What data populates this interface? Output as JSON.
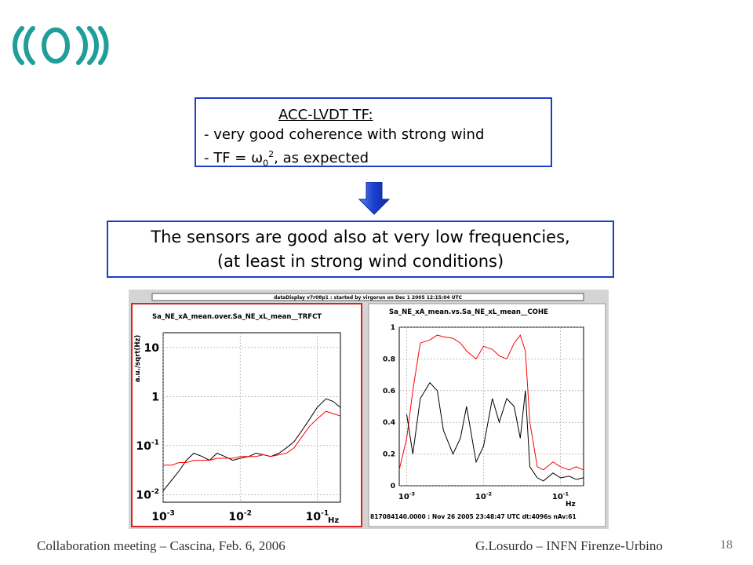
{
  "box1": {
    "heading": "ACC-LVDT TF:",
    "line1": "-  very good coherence with strong wind",
    "line2_prefix": "-  TF = ",
    "line2_symbol": "ω",
    "line2_sub": "0",
    "line2_sup": "2",
    "line2_suffix": ", as expected"
  },
  "box2": {
    "line1": "The sensors are good also at very low frequencies,",
    "line2": "(at least in strong wind conditions)"
  },
  "header_bar": "dataDisplay v7r08p1 : started by virgorun on Dec  1 2005 12:15:04 UTC",
  "footer": {
    "left": "Collaboration meeting – Cascina, Feb. 6, 2006",
    "right": "G.Losurdo – INFN Firenze-Urbino",
    "page": "18"
  },
  "colors": {
    "box_border": "#1c3fc8",
    "arrow": "#1a3fcf",
    "logo": "#1f9e9a",
    "series_red": "#ff0000",
    "series_black": "#000000"
  },
  "chart_data": [
    {
      "type": "line",
      "title": "Sa_NE_xA_mean.over.Sa_NE_xL_mean__TRFCT",
      "ylabel": "a.u./sqrt(Hz)",
      "xlabel": "Hz",
      "xscale": "log",
      "yscale": "log",
      "xlim": [
        0.001,
        0.2
      ],
      "ylim": [
        0.007,
        20
      ],
      "xticks": [
        {
          "v": 0.001,
          "label": "10-3"
        },
        {
          "v": 0.01,
          "label": "10-2"
        },
        {
          "v": 0.1,
          "label": "10-1"
        }
      ],
      "yticks": [
        {
          "v": 10,
          "label": "10"
        },
        {
          "v": 1,
          "label": "1"
        },
        {
          "v": 0.1,
          "label": "10-1"
        },
        {
          "v": 0.01,
          "label": "10-2"
        }
      ],
      "grid": true,
      "series": [
        {
          "color": "black",
          "x": [
            0.001,
            0.0013,
            0.0016,
            0.002,
            0.0025,
            0.0032,
            0.004,
            0.005,
            0.0063,
            0.008,
            0.01,
            0.013,
            0.016,
            0.02,
            0.025,
            0.032,
            0.04,
            0.05,
            0.063,
            0.08,
            0.1,
            0.13,
            0.16,
            0.2
          ],
          "y": [
            0.012,
            0.02,
            0.03,
            0.05,
            0.07,
            0.06,
            0.05,
            0.07,
            0.06,
            0.05,
            0.055,
            0.06,
            0.07,
            0.065,
            0.06,
            0.07,
            0.09,
            0.12,
            0.2,
            0.35,
            0.6,
            0.9,
            0.8,
            0.6
          ]
        },
        {
          "color": "red",
          "x": [
            0.001,
            0.0013,
            0.0016,
            0.002,
            0.0025,
            0.0032,
            0.004,
            0.005,
            0.0063,
            0.008,
            0.01,
            0.013,
            0.016,
            0.02,
            0.025,
            0.032,
            0.04,
            0.05,
            0.063,
            0.08,
            0.1,
            0.13,
            0.16,
            0.2
          ],
          "y": [
            0.04,
            0.04,
            0.045,
            0.045,
            0.05,
            0.05,
            0.05,
            0.055,
            0.055,
            0.055,
            0.06,
            0.06,
            0.06,
            0.065,
            0.06,
            0.065,
            0.07,
            0.09,
            0.15,
            0.25,
            0.35,
            0.5,
            0.45,
            0.4
          ]
        }
      ]
    },
    {
      "type": "line",
      "title": "Sa_NE_xA_mean.vs.Sa_NE_xL_mean__COHE",
      "xlabel": "Hz",
      "xscale": "log",
      "xlim": [
        0.0008,
        0.2
      ],
      "ylim": [
        0,
        1
      ],
      "xticks": [
        {
          "v": 0.001,
          "label": "10-3"
        },
        {
          "v": 0.01,
          "label": "10-2"
        },
        {
          "v": 0.1,
          "label": "10-1"
        }
      ],
      "yticks": [
        {
          "v": 0,
          "label": "0"
        },
        {
          "v": 0.2,
          "label": "0.2"
        },
        {
          "v": 0.4,
          "label": "0.4"
        },
        {
          "v": 0.6,
          "label": "0.6"
        },
        {
          "v": 0.8,
          "label": "0.8"
        },
        {
          "v": 1,
          "label": "1"
        }
      ],
      "grid": true,
      "footer_text": "817084140.0000 : Nov 26 2005 23:48:47 UTC dt:4096s nAv:61",
      "series": [
        {
          "color": "red",
          "x": [
            0.0008,
            0.001,
            0.0012,
            0.0015,
            0.002,
            0.0025,
            0.003,
            0.004,
            0.005,
            0.006,
            0.008,
            0.01,
            0.013,
            0.016,
            0.02,
            0.025,
            0.03,
            0.035,
            0.04,
            0.05,
            0.06,
            0.08,
            0.1,
            0.13,
            0.16,
            0.2
          ],
          "y": [
            0.1,
            0.3,
            0.6,
            0.9,
            0.92,
            0.95,
            0.94,
            0.93,
            0.9,
            0.85,
            0.8,
            0.88,
            0.86,
            0.82,
            0.8,
            0.9,
            0.95,
            0.85,
            0.4,
            0.12,
            0.1,
            0.15,
            0.12,
            0.1,
            0.12,
            0.1
          ]
        },
        {
          "color": "black",
          "x": [
            0.001,
            0.0012,
            0.0015,
            0.002,
            0.0025,
            0.003,
            0.004,
            0.005,
            0.006,
            0.008,
            0.01,
            0.013,
            0.016,
            0.02,
            0.025,
            0.03,
            0.035,
            0.04,
            0.05,
            0.06,
            0.08,
            0.1,
            0.13,
            0.16,
            0.2
          ],
          "y": [
            0.45,
            0.2,
            0.55,
            0.65,
            0.6,
            0.35,
            0.2,
            0.3,
            0.5,
            0.15,
            0.25,
            0.55,
            0.4,
            0.55,
            0.5,
            0.3,
            0.6,
            0.12,
            0.05,
            0.03,
            0.08,
            0.05,
            0.06,
            0.04,
            0.05
          ]
        }
      ]
    }
  ]
}
